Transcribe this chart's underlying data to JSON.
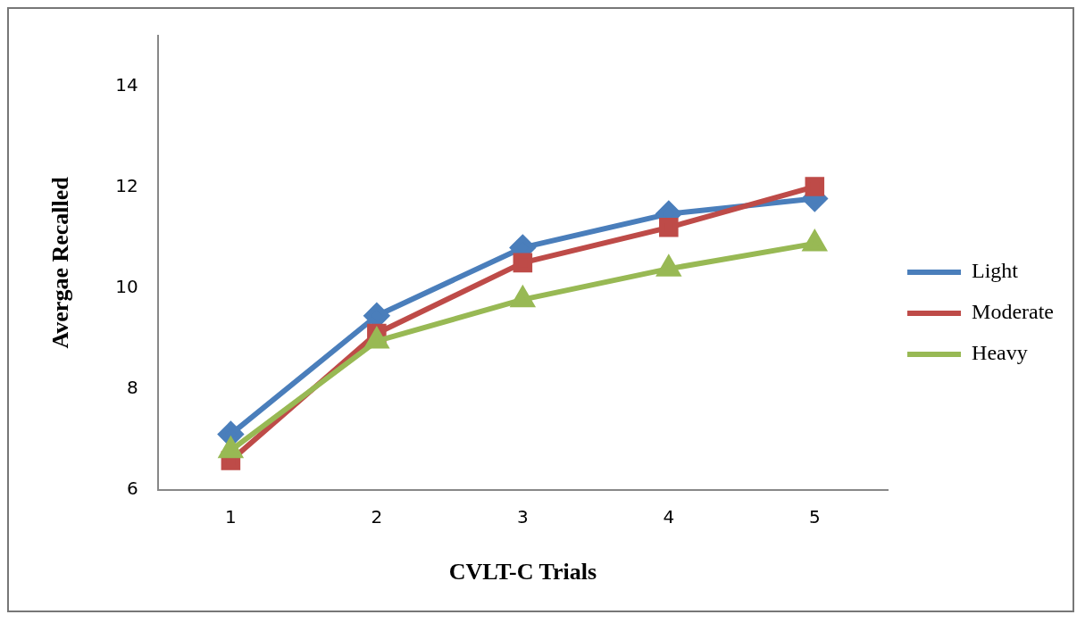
{
  "chart_data": {
    "type": "line",
    "xlabel": "CVLT-C Trials",
    "ylabel": "Avergae Recalled",
    "categories": [
      "1",
      "2",
      "3",
      "4",
      "5"
    ],
    "series": [
      {
        "name": "Light",
        "color": "#4a7ebb",
        "marker": "diamond",
        "values": [
          7.1,
          9.45,
          10.8,
          11.47,
          11.77
        ]
      },
      {
        "name": "Moderate",
        "color": "#be4b48",
        "marker": "square",
        "values": [
          6.58,
          9.1,
          10.5,
          11.2,
          12.01
        ]
      },
      {
        "name": "Heavy",
        "color": "#98b954",
        "marker": "triangle",
        "values": [
          6.78,
          8.95,
          9.77,
          10.38,
          10.88
        ]
      }
    ],
    "ylim": [
      6,
      15
    ],
    "yticks": [
      6,
      8,
      10,
      12,
      14
    ],
    "grid": false,
    "legend": "right",
    "line_style": "solid"
  }
}
